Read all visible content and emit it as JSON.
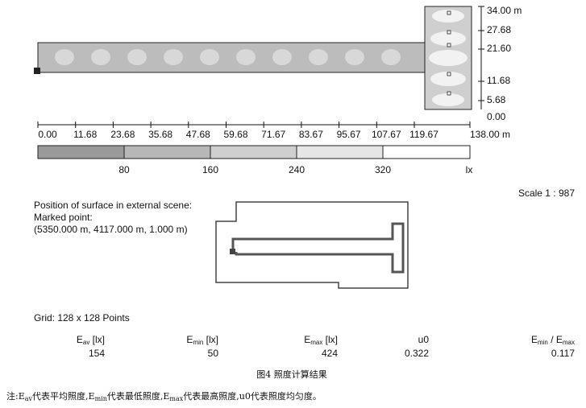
{
  "plan": {
    "y_labels": [
      "34.00 m",
      "27.68",
      "21.60",
      "11.68",
      "5.68",
      "0.00"
    ],
    "x_labels": [
      "0.00",
      "11.68",
      "23.68",
      "35.68",
      "47.68",
      "59.68",
      "71.67",
      "83.67",
      "95.67",
      "107.67",
      "119.67",
      "138.00 m"
    ]
  },
  "legend": {
    "labels": [
      "80",
      "160",
      "240",
      "320",
      "lx"
    ]
  },
  "scale": "Scale 1 : 987",
  "position": {
    "lines": [
      "Position of surface in external scene:",
      "Marked point:",
      "(5350.000 m, 4117.000 m, 1.000 m)"
    ]
  },
  "grid": "Grid: 128 x 128 Points",
  "table": {
    "headers": [
      [
        "E",
        "av",
        " [lx]"
      ],
      [
        "E",
        "min",
        " [lx]"
      ],
      [
        "E",
        "max",
        " [lx]"
      ],
      [
        "u0"
      ],
      [
        "E",
        "min",
        " / E",
        "max"
      ]
    ],
    "values": [
      "154",
      "50",
      "424",
      "0.322",
      "0.117"
    ]
  },
  "caption": "图4  照度计算结果",
  "note": [
    "注:E",
    "av",
    "代表平均照度,E",
    "min",
    "代表最低照度,E",
    "max",
    "代表最高照度,u0代表照度均匀度。"
  ]
}
